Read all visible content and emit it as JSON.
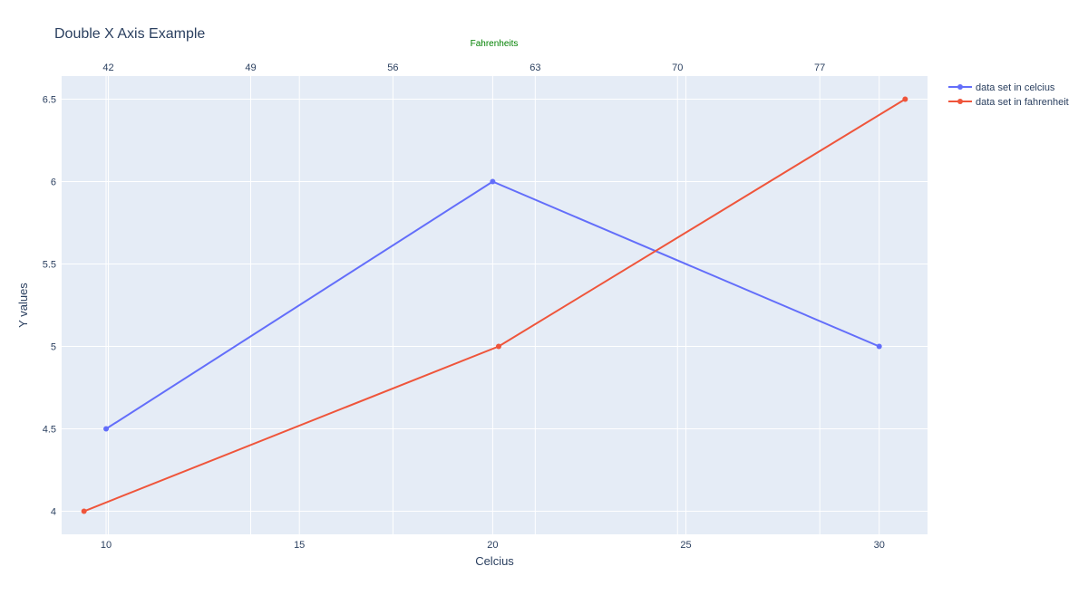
{
  "chart_data": {
    "type": "line",
    "title": "Double X Axis Example",
    "xlabel": "Celcius",
    "xlabel_top": "Fahrenheits",
    "ylabel": "Y values",
    "xlim_bottom": [
      8.85,
      31.25
    ],
    "xlim_top": [
      39.7,
      82.3
    ],
    "ylim": [
      3.86,
      6.64
    ],
    "x_ticks_bottom": [
      10,
      15,
      20,
      25,
      30
    ],
    "x_ticks_top": [
      42,
      49,
      56,
      63,
      70,
      77
    ],
    "y_ticks": [
      4,
      4.5,
      5,
      5.5,
      6,
      6.5
    ],
    "grid": true,
    "legend_position": "right",
    "colors": {
      "plot_bg": "#e5ecf6",
      "grid": "#ffffff",
      "text": "#2a3f5f",
      "top_axis_title": "#008000"
    },
    "series": [
      {
        "name": "data set in celcius",
        "axis": "bottom",
        "color": "#636efa",
        "x": [
          10,
          20,
          30
        ],
        "y": [
          4.5,
          6,
          5
        ]
      },
      {
        "name": "data set in fahrenheit",
        "axis": "top",
        "color": "#ef553b",
        "x": [
          40.8,
          61.2,
          81.2
        ],
        "y": [
          4,
          5,
          6.5
        ]
      }
    ]
  }
}
